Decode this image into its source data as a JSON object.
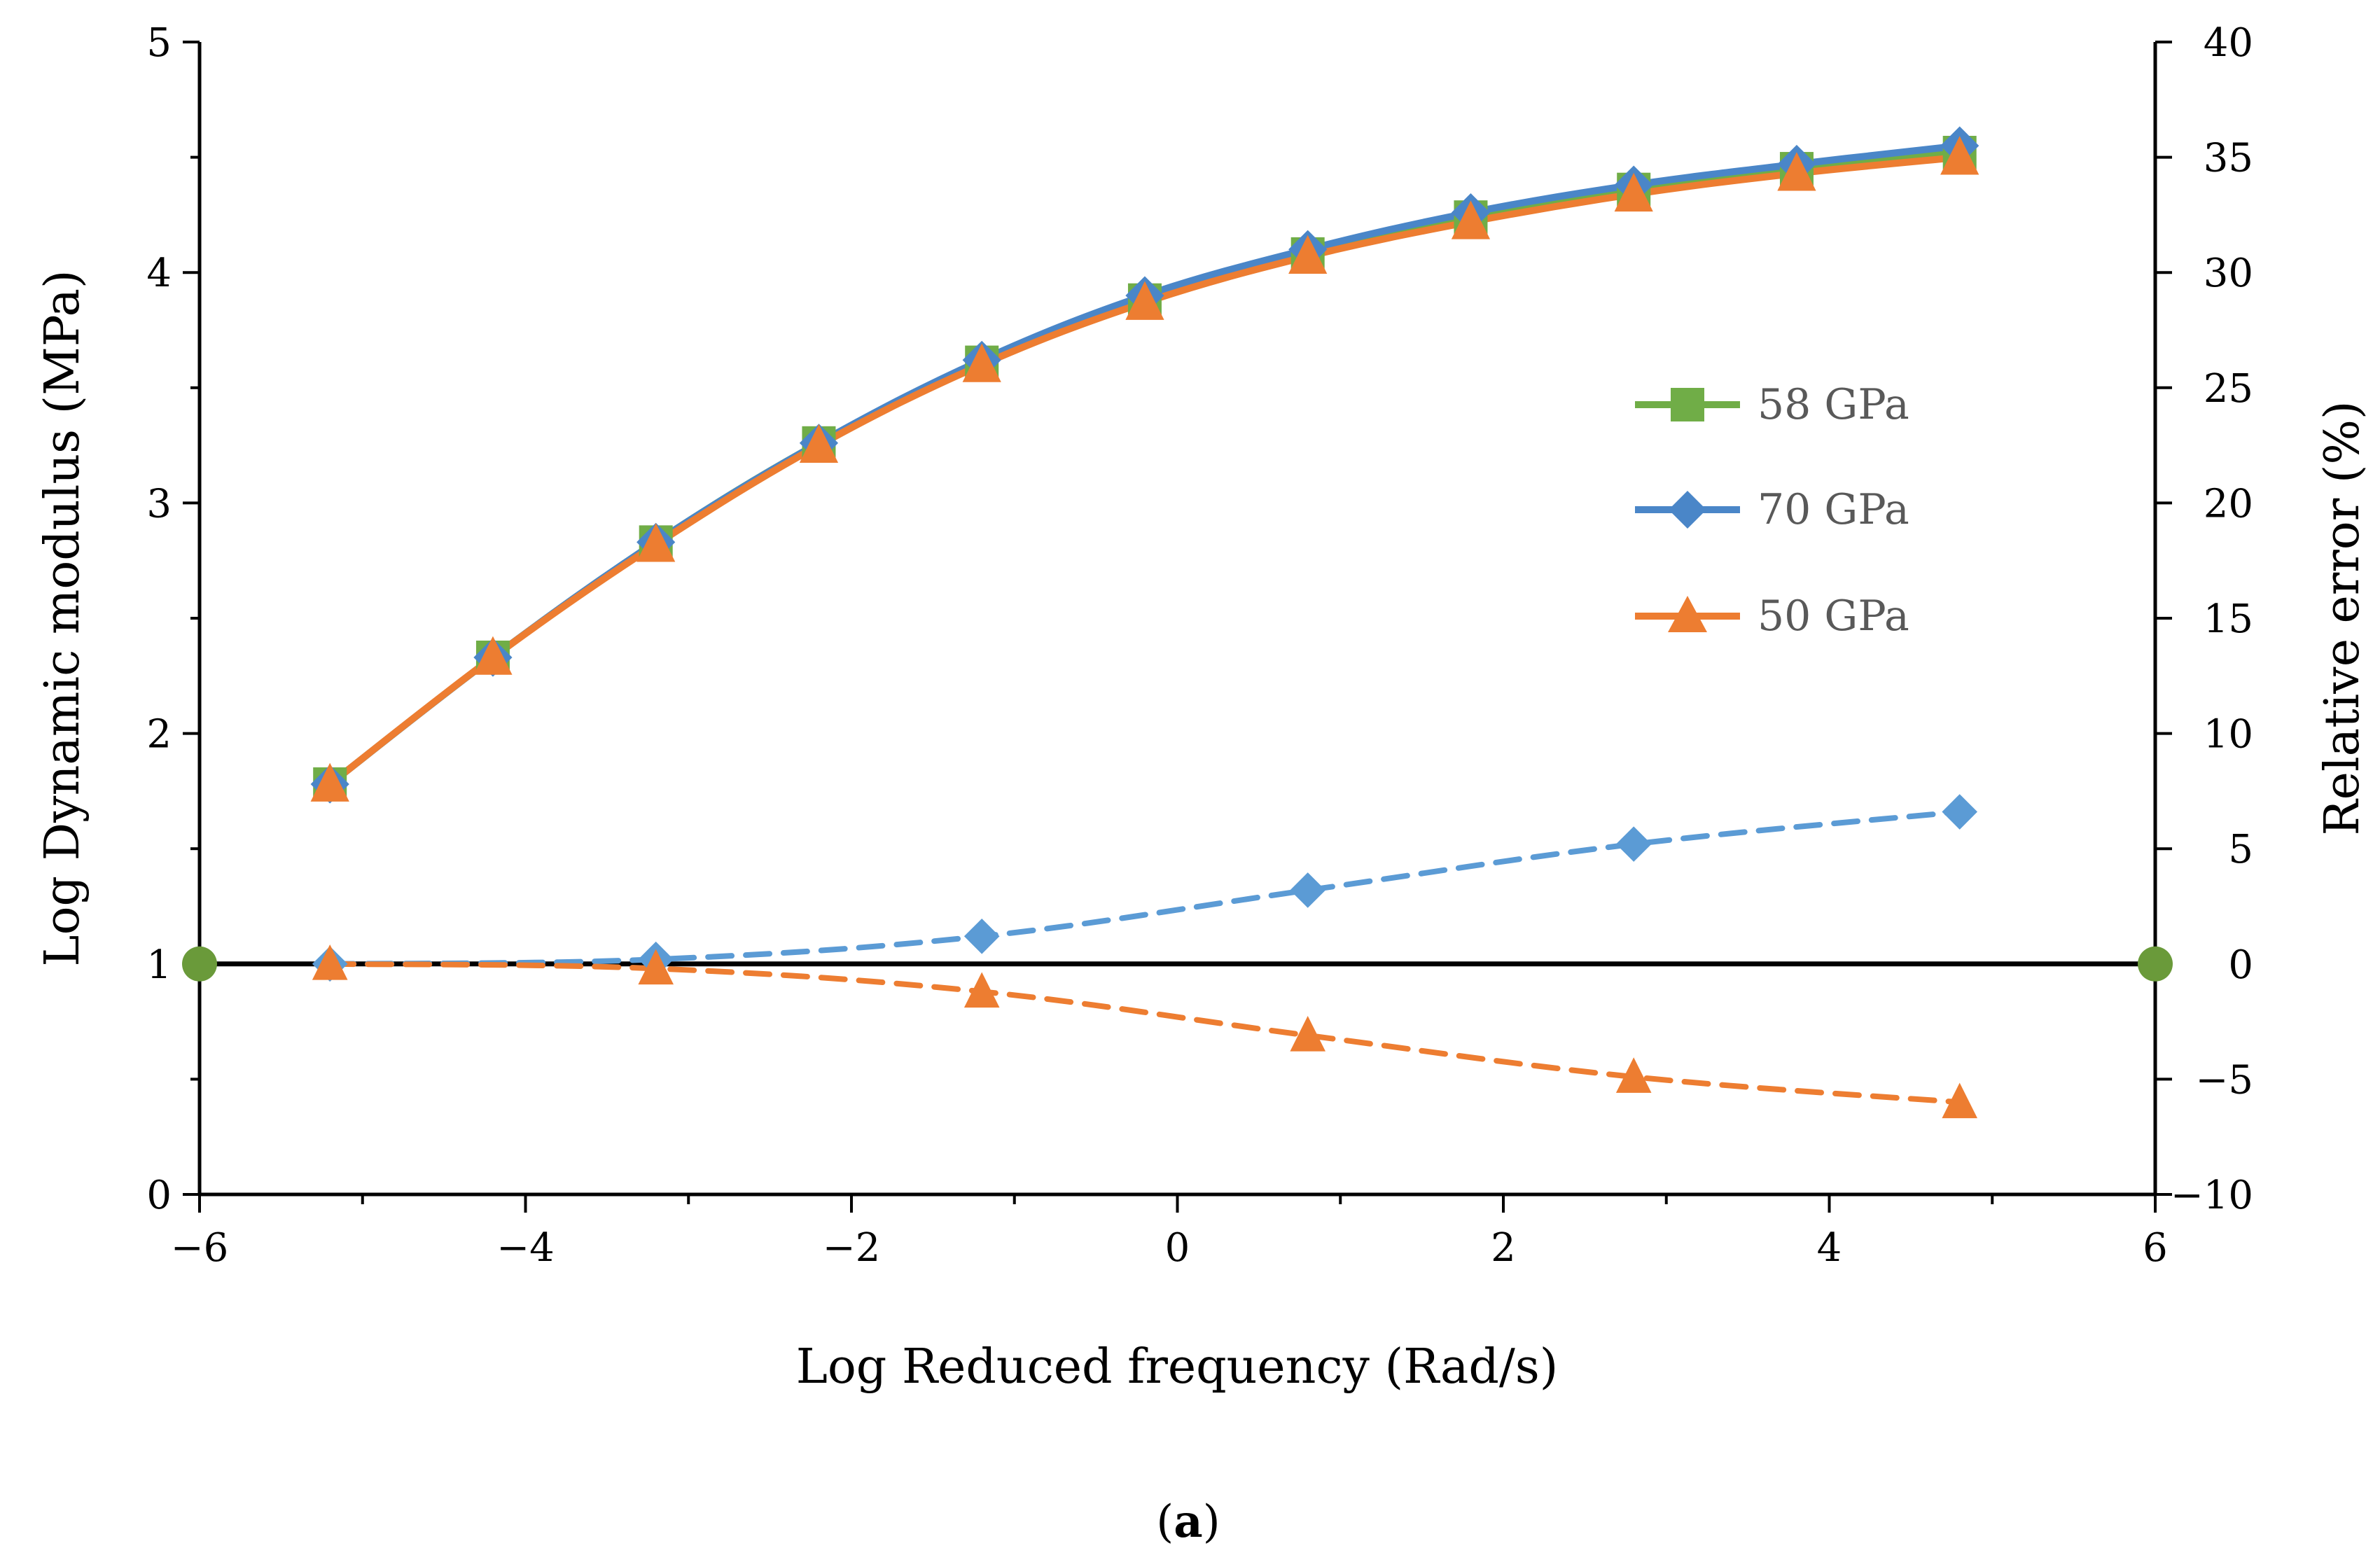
{
  "chart_data": {
    "type": "line",
    "xlabel": "Log Reduced frequency (Rad/s)",
    "ylabel": "Log Dynamic modulus (MPa)",
    "y2label": "Relative error (%)",
    "caption_prefix": "(",
    "caption_letter": "a",
    "caption_suffix": ")",
    "xlim": [
      -6,
      6
    ],
    "ylim": [
      0,
      5
    ],
    "y2lim": [
      -10,
      40
    ],
    "xticks": [
      -6,
      -4,
      -2,
      0,
      2,
      4,
      6
    ],
    "xtick_labels": [
      "−6",
      "−4",
      "−2",
      "0",
      "2",
      "4",
      "6"
    ],
    "yticks": [
      0,
      1,
      2,
      3,
      4,
      5
    ],
    "ytick_labels": [
      "0",
      "1",
      "2",
      "3",
      "4",
      "5"
    ],
    "y2ticks": [
      -10,
      -5,
      0,
      5,
      10,
      15,
      20,
      25,
      30,
      35,
      40
    ],
    "y2tick_labels": [
      "−10",
      "−5",
      "0",
      "5",
      "10",
      "15",
      "20",
      "25",
      "30",
      "35",
      "40"
    ],
    "series": [
      {
        "name": "58 GPa",
        "axis": "left",
        "marker": "square",
        "color": "#70ad47",
        "line_style": "solid",
        "x": [
          -5.2,
          -4.2,
          -3.2,
          -2.2,
          -1.2,
          -0.2,
          0.8,
          1.8,
          2.8,
          3.8,
          4.8
        ],
        "values": [
          1.78,
          2.33,
          2.83,
          3.26,
          3.61,
          3.88,
          4.08,
          4.24,
          4.36,
          4.45,
          4.52
        ]
      },
      {
        "name": "70 GPa",
        "axis": "left",
        "marker": "diamond",
        "color": "#4a86c8",
        "line_style": "solid",
        "x": [
          -5.2,
          -4.2,
          -3.2,
          -2.2,
          -1.2,
          -0.2,
          0.8,
          1.8,
          2.8,
          3.8,
          4.8
        ],
        "values": [
          1.78,
          2.33,
          2.83,
          3.26,
          3.62,
          3.9,
          4.1,
          4.26,
          4.38,
          4.47,
          4.55
        ]
      },
      {
        "name": "50 GPa",
        "axis": "left",
        "marker": "triangle",
        "color": "#ed7d31",
        "line_style": "solid",
        "x": [
          -5.2,
          -4.2,
          -3.2,
          -2.2,
          -1.2,
          -0.2,
          0.8,
          1.8,
          2.8,
          3.8,
          4.8
        ],
        "values": [
          1.78,
          2.33,
          2.82,
          3.25,
          3.6,
          3.87,
          4.07,
          4.22,
          4.34,
          4.43,
          4.5
        ]
      },
      {
        "name": "Relative error 70 GPa",
        "axis": "right",
        "marker": "diamond",
        "color": "#5b9bd5",
        "line_style": "dashed",
        "x": [
          -5.2,
          -3.2,
          -1.2,
          0.8,
          2.8,
          4.8
        ],
        "values": [
          0.0,
          0.2,
          1.2,
          3.2,
          5.2,
          6.6
        ]
      },
      {
        "name": "Relative error 50 GPa",
        "axis": "right",
        "marker": "triangle",
        "color": "#ed7d31",
        "line_style": "dashed",
        "x": [
          -5.2,
          -3.2,
          -1.2,
          0.8,
          2.8,
          4.8
        ],
        "values": [
          0.0,
          -0.2,
          -1.2,
          -3.1,
          -4.9,
          -6.0
        ]
      }
    ],
    "zero_line": {
      "axis": "right",
      "value": 0,
      "x": [
        -6,
        6
      ],
      "color": "#000000",
      "endpoint_color": "#6a9a3a"
    },
    "legend": {
      "placement": "center-right",
      "entries": [
        "58 GPa",
        "70 GPa",
        "50 GPa"
      ]
    },
    "grid": false
  }
}
